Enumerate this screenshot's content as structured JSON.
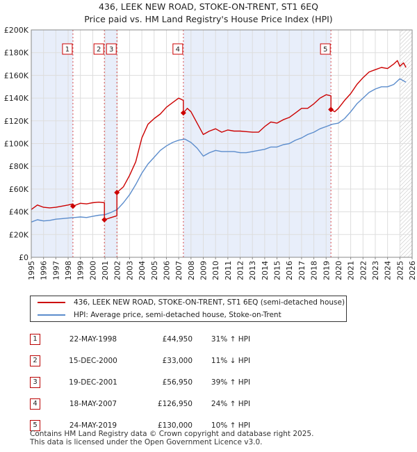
{
  "title_line1": "436, LEEK NEW ROAD, STOKE-ON-TRENT, ST1 6EQ",
  "title_line2": "Price paid vs. HM Land Registry's House Price Index (HPI)",
  "chart_data": {
    "type": "line",
    "ylim": [
      0,
      200000
    ],
    "xlim": [
      1995.0,
      2026.0
    ],
    "y_ticks": [
      0,
      20000,
      40000,
      60000,
      80000,
      100000,
      120000,
      140000,
      160000,
      180000,
      200000
    ],
    "y_tick_labels": [
      "£0",
      "£20K",
      "£40K",
      "£60K",
      "£80K",
      "£100K",
      "£120K",
      "£140K",
      "£160K",
      "£180K",
      "£200K"
    ],
    "x_ticks": [
      1995,
      1996,
      1997,
      1998,
      1999,
      2000,
      2001,
      2002,
      2003,
      2004,
      2005,
      2006,
      2007,
      2008,
      2009,
      2010,
      2011,
      2012,
      2013,
      2014,
      2015,
      2016,
      2017,
      2018,
      2019,
      2020,
      2021,
      2022,
      2023,
      2024,
      2025,
      2026
    ],
    "x_tick_labels": [
      "1995",
      "1996",
      "1997",
      "1998",
      "1999",
      "2000",
      "2001",
      "2002",
      "2003",
      "2004",
      "2005",
      "2006",
      "2007",
      "2008",
      "2009",
      "2010",
      "2011",
      "2012",
      "2013",
      "2014",
      "2015",
      "2016",
      "2017",
      "2018",
      "2019",
      "2020",
      "2021",
      "2022",
      "2023",
      "2024",
      "2025",
      "2026"
    ],
    "series": [
      {
        "name": "436, LEEK NEW ROAD, STOKE-ON-TRENT, ST1 6EQ (semi-detached house)",
        "color": "#cc0000",
        "x": [
          1995.0,
          1995.5,
          1996.0,
          1996.5,
          1997.0,
          1997.5,
          1998.0,
          1998.39,
          1998.39,
          1999.0,
          1999.5,
          2000.0,
          2000.5,
          2000.95,
          2000.95,
          2001.5,
          2001.97,
          2001.97,
          2002.5,
          2003.0,
          2003.5,
          2004.0,
          2004.5,
          2005.0,
          2005.5,
          2006.0,
          2006.5,
          2007.0,
          2007.38,
          2007.38,
          2007.7,
          2008.0,
          2008.5,
          2009.0,
          2009.5,
          2010.0,
          2010.5,
          2011.0,
          2011.5,
          2012.0,
          2012.5,
          2013.0,
          2013.5,
          2014.0,
          2014.5,
          2015.0,
          2015.5,
          2016.0,
          2016.5,
          2017.0,
          2017.5,
          2018.0,
          2018.5,
          2019.0,
          2019.39,
          2019.39,
          2019.7,
          2020.0,
          2020.5,
          2021.0,
          2021.5,
          2022.0,
          2022.5,
          2023.0,
          2023.5,
          2024.0,
          2024.5,
          2024.8,
          2025.0,
          2025.3,
          2025.5
        ],
        "y": [
          42000,
          46000,
          44000,
          43500,
          44000,
          45000,
          46000,
          47000,
          44950,
          47500,
          47000,
          48000,
          48500,
          48000,
          33000,
          35000,
          36500,
          56950,
          62000,
          72000,
          84000,
          105000,
          117000,
          122000,
          126000,
          132000,
          136000,
          140000,
          138000,
          126950,
          131000,
          128000,
          118000,
          108000,
          111000,
          113000,
          110000,
          112000,
          111000,
          111000,
          110500,
          110000,
          110000,
          115000,
          119000,
          118000,
          121000,
          123000,
          127000,
          131000,
          131000,
          135000,
          140000,
          143000,
          142000,
          130000,
          128000,
          131000,
          138000,
          144000,
          152000,
          158000,
          163000,
          165000,
          167000,
          166000,
          170000,
          173000,
          168000,
          171000,
          167000
        ]
      },
      {
        "name": "HPI: Average price, semi-detached house, Stoke-on-Trent",
        "color": "#5b8ccc",
        "x": [
          1995.0,
          1995.5,
          1996.0,
          1996.5,
          1997.0,
          1997.5,
          1998.0,
          1998.5,
          1999.0,
          1999.5,
          2000.0,
          2000.5,
          2001.0,
          2001.5,
          2002.0,
          2002.5,
          2003.0,
          2003.5,
          2004.0,
          2004.5,
          2005.0,
          2005.5,
          2006.0,
          2006.5,
          2007.0,
          2007.5,
          2008.0,
          2008.5,
          2009.0,
          2009.5,
          2010.0,
          2010.5,
          2011.0,
          2011.5,
          2012.0,
          2012.5,
          2013.0,
          2013.5,
          2014.0,
          2014.5,
          2015.0,
          2015.5,
          2016.0,
          2016.5,
          2017.0,
          2017.5,
          2018.0,
          2018.5,
          2019.0,
          2019.5,
          2020.0,
          2020.5,
          2021.0,
          2021.5,
          2022.0,
          2022.5,
          2023.0,
          2023.5,
          2024.0,
          2024.5,
          2025.0,
          2025.5
        ],
        "y": [
          31000,
          33000,
          32000,
          32500,
          33500,
          34000,
          34500,
          35000,
          35500,
          35000,
          36000,
          37000,
          37500,
          39500,
          42000,
          48000,
          55000,
          64000,
          74000,
          82000,
          88000,
          94000,
          98000,
          101000,
          103000,
          104000,
          101000,
          96000,
          89000,
          92000,
          94000,
          93000,
          93000,
          93000,
          92000,
          92000,
          93000,
          94000,
          95000,
          97000,
          97000,
          99000,
          100000,
          103000,
          105000,
          108000,
          110000,
          113000,
          115000,
          117000,
          118000,
          122000,
          128000,
          135000,
          140000,
          145000,
          148000,
          150000,
          150000,
          152000,
          157000,
          154000
        ]
      }
    ],
    "sales": [
      {
        "label": "1",
        "x": 1998.39,
        "price": 44950
      },
      {
        "label": "2",
        "x": 2000.95,
        "price": 33000
      },
      {
        "label": "3",
        "x": 2001.97,
        "price": 56950
      },
      {
        "label": "4",
        "x": 2007.38,
        "price": 126950
      },
      {
        "label": "5",
        "x": 2019.39,
        "price": 130000
      }
    ],
    "shaded_periods": [
      [
        1995.0,
        1998.39
      ],
      [
        2000.95,
        2001.97
      ],
      [
        2007.38,
        2019.39
      ]
    ],
    "hatched_period": [
      2025.0,
      2026.0
    ]
  },
  "legend": {
    "property_label": "436, LEEK NEW ROAD, STOKE-ON-TRENT, ST1 6EQ (semi-detached house)",
    "hpi_label": "HPI: Average price, semi-detached house, Stoke-on-Trent",
    "property_color": "#cc0000",
    "hpi_color": "#5b8ccc"
  },
  "transactions": [
    {
      "num": "1",
      "date": "22-MAY-1998",
      "price": "£44,950",
      "hpi": "31% ↑ HPI"
    },
    {
      "num": "2",
      "date": "15-DEC-2000",
      "price": "£33,000",
      "hpi": "11% ↓ HPI"
    },
    {
      "num": "3",
      "date": "19-DEC-2001",
      "price": "£56,950",
      "hpi": "39% ↑ HPI"
    },
    {
      "num": "4",
      "date": "18-MAY-2007",
      "price": "£126,950",
      "hpi": "24% ↑ HPI"
    },
    {
      "num": "5",
      "date": "24-MAY-2019",
      "price": "£130,000",
      "hpi": "10% ↑ HPI"
    }
  ],
  "footer": {
    "line1": "Contains HM Land Registry data © Crown copyright and database right 2025.",
    "line2": "This data is licensed under the Open Government Licence v3.0."
  }
}
